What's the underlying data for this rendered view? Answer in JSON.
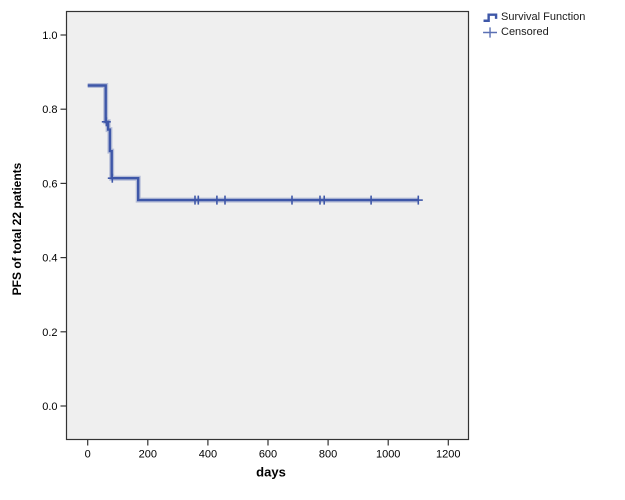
{
  "legend": {
    "position": "top-right",
    "items": [
      {
        "label": "Survival Function",
        "icon": "step-line-icon"
      },
      {
        "label": "Censored",
        "icon": "plus-icon"
      }
    ]
  },
  "colors": {
    "curve": "#3E57A8",
    "curve_halo_opacity": 0.32,
    "plot_bg": "#EFEFEF",
    "frame": "#333333",
    "text": "#000000"
  },
  "chart_data": {
    "type": "line",
    "subtype": "kaplan-meier-step",
    "title": "",
    "xlabel": "days",
    "ylabel": "PFS of total 22 patients",
    "xlim": [
      0,
      1200
    ],
    "ylim": [
      0.0,
      1.0
    ],
    "x_tick_labels": [
      "0",
      "200",
      "400",
      "600",
      "800",
      "1000",
      "1200"
    ],
    "y_tick_labels": [
      "0.0",
      "0.2",
      "0.4",
      "0.6",
      "0.8",
      "1.0"
    ],
    "grid": false,
    "legend_position": "top-right",
    "series": [
      {
        "name": "Survival Function",
        "steps": [
          [
            0,
            0.864
          ],
          [
            60,
            0.766
          ],
          [
            68,
            0.745
          ],
          [
            74,
            0.687
          ],
          [
            80,
            0.614
          ],
          [
            168,
            0.555
          ]
        ],
        "end_x": 1100
      }
    ],
    "censored": [
      [
        62,
        0.766
      ],
      [
        82,
        0.614
      ],
      [
        357,
        0.555
      ],
      [
        368,
        0.555
      ],
      [
        430,
        0.555
      ],
      [
        457,
        0.555
      ],
      [
        680,
        0.555
      ],
      [
        773,
        0.555
      ],
      [
        787,
        0.555
      ],
      [
        943,
        0.555
      ],
      [
        1100,
        0.555
      ]
    ]
  }
}
